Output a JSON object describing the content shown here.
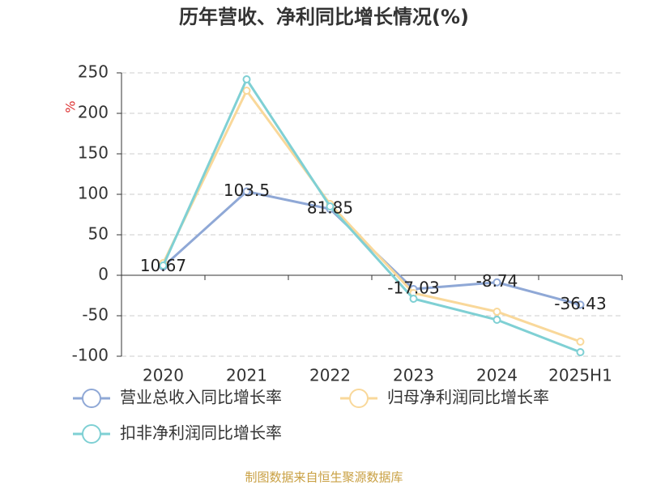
{
  "chart_data": {
    "type": "line",
    "title": "历年营收、净利同比增长情况(%)",
    "y_label": "%",
    "categories": [
      "2020",
      "2021",
      "2022",
      "2023",
      "2024",
      "2025H1"
    ],
    "series": [
      {
        "name": "营业总收入同比增长率",
        "color": "#8fa8d6",
        "values": [
          10.67,
          103.5,
          81.85,
          -17.03,
          -8.74,
          -36.43
        ],
        "show_labels": true
      },
      {
        "name": "归母净利润同比增长率",
        "color": "#f9d89a",
        "values": [
          15,
          228,
          88,
          -22,
          -45,
          -82
        ]
      },
      {
        "name": "扣非净利润同比增长率",
        "color": "#7fd0d4",
        "values": [
          12,
          242,
          85,
          -29,
          -55,
          -95
        ]
      }
    ],
    "ylim": [
      -100,
      250
    ],
    "yticks": [
      -100,
      -50,
      0,
      50,
      100,
      150,
      200,
      250
    ],
    "grid": true,
    "source": "制图数据来自恒生聚源数据库"
  }
}
